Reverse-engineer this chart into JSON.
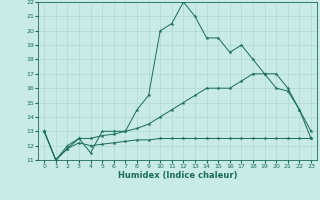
{
  "xlabel": "Humidex (Indice chaleur)",
  "background_color": "#c8eae8",
  "grid_color": "#b0d8d4",
  "line_color": "#1a6b5a",
  "xlim": [
    -0.5,
    23.5
  ],
  "ylim": [
    11,
    22
  ],
  "x_ticks": [
    0,
    1,
    2,
    3,
    4,
    5,
    6,
    7,
    8,
    9,
    10,
    11,
    12,
    13,
    14,
    15,
    16,
    17,
    18,
    19,
    20,
    21,
    22,
    23
  ],
  "y_ticks": [
    11,
    12,
    13,
    14,
    15,
    16,
    17,
    18,
    19,
    20,
    21,
    22
  ],
  "line1_x": [
    0,
    1,
    2,
    3,
    4,
    5,
    6,
    7,
    8,
    9,
    10,
    11,
    12,
    13,
    14,
    15,
    16,
    17,
    18,
    19,
    20,
    21,
    22,
    23
  ],
  "line1_y": [
    13,
    11,
    12,
    12.5,
    11.5,
    13,
    13,
    13,
    14.5,
    15.5,
    20,
    20.5,
    22,
    21,
    19.5,
    19.5,
    18.5,
    19,
    18,
    17,
    17,
    16,
    14.5,
    13
  ],
  "line2_x": [
    0,
    1,
    2,
    3,
    4,
    5,
    6,
    7,
    8,
    9,
    10,
    11,
    12,
    13,
    14,
    15,
    16,
    17,
    18,
    19,
    20,
    21,
    22,
    23
  ],
  "line2_y": [
    13,
    11,
    11.8,
    12.5,
    12.5,
    12.7,
    12.8,
    13.0,
    13.2,
    13.5,
    14.0,
    14.5,
    15.0,
    15.5,
    16.0,
    16.0,
    16.0,
    16.5,
    17.0,
    17.0,
    16.0,
    15.8,
    14.5,
    12.5
  ],
  "line3_x": [
    0,
    1,
    2,
    3,
    4,
    5,
    6,
    7,
    8,
    9,
    10,
    11,
    12,
    13,
    14,
    15,
    16,
    17,
    18,
    19,
    20,
    21,
    22,
    23
  ],
  "line3_y": [
    13,
    11,
    11.8,
    12.2,
    12.0,
    12.1,
    12.2,
    12.3,
    12.4,
    12.4,
    12.5,
    12.5,
    12.5,
    12.5,
    12.5,
    12.5,
    12.5,
    12.5,
    12.5,
    12.5,
    12.5,
    12.5,
    12.5,
    12.5
  ]
}
